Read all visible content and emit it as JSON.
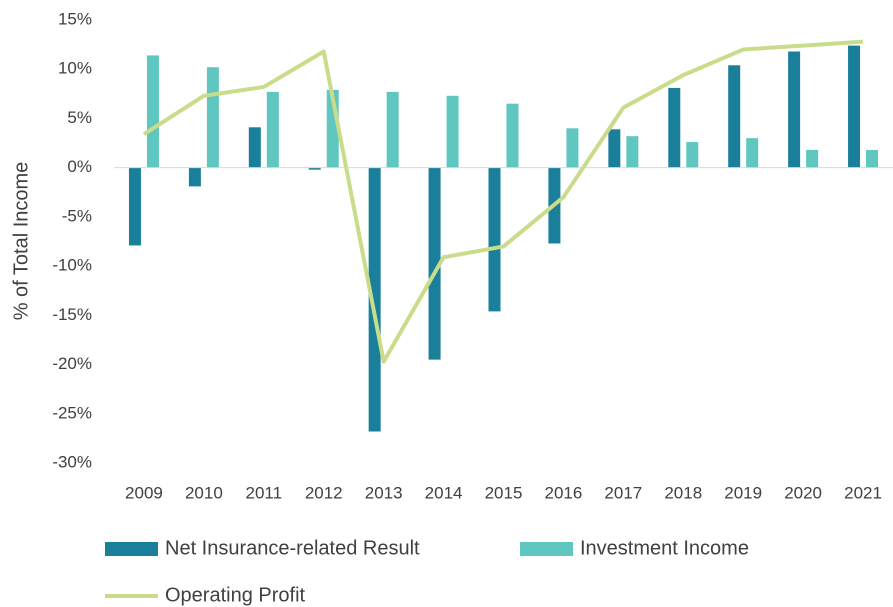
{
  "chart_data": {
    "type": "bar_line",
    "y_label": "% of Total Income",
    "categories": [
      "2009",
      "2010",
      "2011",
      "2012",
      "2013",
      "2014",
      "2015",
      "2016",
      "2017",
      "2018",
      "2019",
      "2020",
      "2021"
    ],
    "series": [
      {
        "name": "Net Insurance-related Result",
        "type": "bar",
        "color": "#1a7f9a",
        "values": [
          -7.9,
          -1.9,
          4.1,
          -0.2,
          -26.8,
          -19.5,
          -14.6,
          -7.7,
          3.9,
          8.1,
          10.4,
          11.8,
          12.4
        ]
      },
      {
        "name": "Investment Income",
        "type": "bar",
        "color": "#5fc6c0",
        "values": [
          11.4,
          10.2,
          7.7,
          7.9,
          7.7,
          7.3,
          6.5,
          4.0,
          3.2,
          2.6,
          3.0,
          1.8,
          1.8
        ]
      },
      {
        "name": "Operating Profit",
        "type": "line",
        "color": "#c9dc8a",
        "values": [
          3.4,
          7.3,
          8.2,
          11.8,
          -19.7,
          -9.1,
          -8.0,
          -3.0,
          6.1,
          9.4,
          12.0,
          12.4,
          12.8
        ]
      }
    ],
    "ylim": [
      -30,
      15
    ],
    "yticks": [
      {
        "value": 15,
        "label": "15%"
      },
      {
        "value": 10,
        "label": "10%"
      },
      {
        "value": 5,
        "label": "5%"
      },
      {
        "value": 0,
        "label": "0%"
      },
      {
        "value": -5,
        "label": "-5%"
      },
      {
        "value": -10,
        "label": "-10%"
      },
      {
        "value": -15,
        "label": "-15%"
      },
      {
        "value": -20,
        "label": "-20%"
      },
      {
        "value": -25,
        "label": "-25%"
      },
      {
        "value": -30,
        "label": "-30%"
      }
    ],
    "grid": false,
    "legend": "bottom"
  }
}
